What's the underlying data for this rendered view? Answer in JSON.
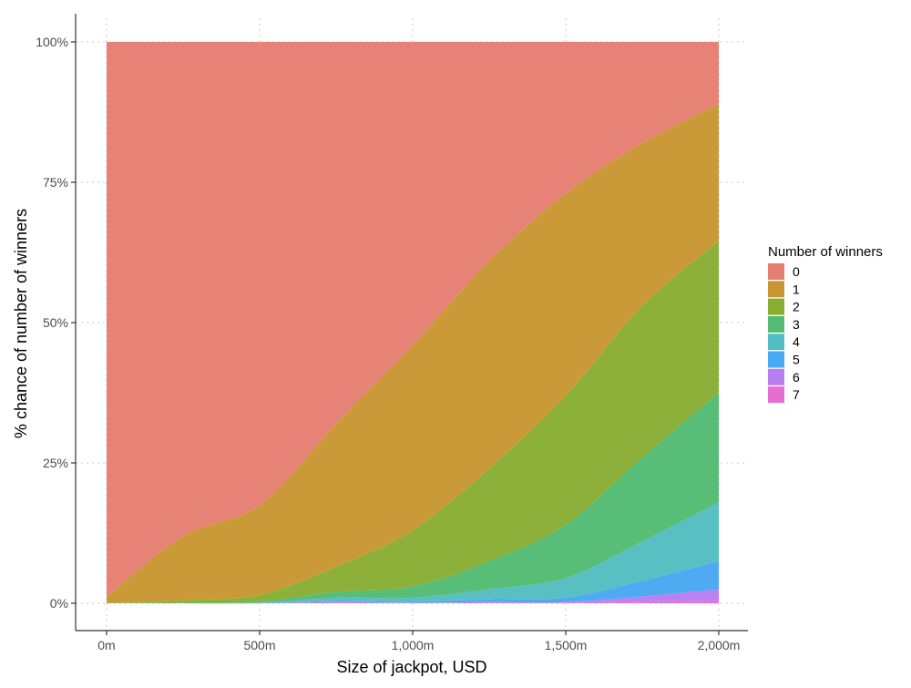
{
  "chart_data": {
    "type": "area",
    "stacking": "percent",
    "xlabel": "Size of jackpot, USD",
    "ylabel": "% chance of number of winners",
    "xlim": [
      0,
      2000
    ],
    "ylim": [
      0,
      1
    ],
    "x_ticks": [
      {
        "value": 0,
        "label": "0m"
      },
      {
        "value": 500,
        "label": "500m"
      },
      {
        "value": 1000,
        "label": "1,000m"
      },
      {
        "value": 1500,
        "label": "1,500m"
      },
      {
        "value": 2000,
        "label": "2,000m"
      }
    ],
    "y_ticks": [
      {
        "value": 0,
        "label": "0%"
      },
      {
        "value": 0.25,
        "label": "25%"
      },
      {
        "value": 0.5,
        "label": "50%"
      },
      {
        "value": 0.75,
        "label": "75%"
      },
      {
        "value": 1,
        "label": "100%"
      }
    ],
    "grid": true,
    "legend": {
      "title": "Number of winners",
      "position": "right"
    },
    "x": [
      0,
      250,
      500,
      750,
      1000,
      1250,
      1500,
      1750,
      2000
    ],
    "series": [
      {
        "name": "0",
        "color": "#E67E72",
        "values": [
          0.988,
          0.88,
          0.825,
          0.68,
          0.54,
          0.39,
          0.27,
          0.18,
          0.11
        ]
      },
      {
        "name": "1",
        "color": "#C89733",
        "values": [
          0.012,
          0.115,
          0.16,
          0.255,
          0.33,
          0.37,
          0.36,
          0.29,
          0.245
        ]
      },
      {
        "name": "2",
        "color": "#88AD33",
        "values": [
          0.0,
          0.004,
          0.012,
          0.045,
          0.1,
          0.165,
          0.23,
          0.27,
          0.27
        ]
      },
      {
        "name": "3",
        "color": "#53BB72",
        "values": [
          0.0,
          0.001,
          0.002,
          0.01,
          0.02,
          0.05,
          0.095,
          0.15,
          0.195
        ]
      },
      {
        "name": "4",
        "color": "#53BDC1",
        "values": [
          0.0,
          0.0,
          0.001,
          0.006,
          0.007,
          0.018,
          0.035,
          0.07,
          0.105
        ]
      },
      {
        "name": "5",
        "color": "#48A8F2",
        "values": [
          0.0,
          0.0,
          0.0,
          0.002,
          0.002,
          0.005,
          0.008,
          0.028,
          0.05
        ]
      },
      {
        "name": "6",
        "color": "#B87EF0",
        "values": [
          0.0,
          0.0,
          0.0,
          0.001,
          0.001,
          0.001,
          0.001,
          0.009,
          0.02
        ]
      },
      {
        "name": "7",
        "color": "#E86DD3",
        "values": [
          0.0,
          0.0,
          0.0,
          0.001,
          0.0,
          0.001,
          0.001,
          0.003,
          0.005
        ]
      }
    ]
  }
}
